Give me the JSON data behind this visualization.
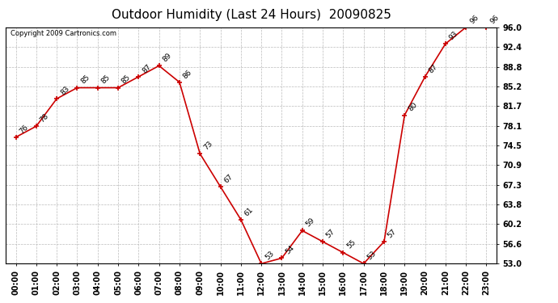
{
  "title": "Outdoor Humidity (Last 24 Hours)  20090825",
  "copyright": "Copyright 2009 Cartronics.com",
  "x_labels": [
    "00:00",
    "01:00",
    "02:00",
    "03:00",
    "04:00",
    "05:00",
    "06:00",
    "07:00",
    "08:00",
    "09:00",
    "10:00",
    "11:00",
    "12:00",
    "13:00",
    "14:00",
    "15:00",
    "16:00",
    "17:00",
    "18:00",
    "19:00",
    "20:00",
    "21:00",
    "22:00",
    "23:00"
  ],
  "y_values": [
    76,
    78,
    83,
    85,
    85,
    85,
    87,
    89,
    86,
    73,
    67,
    61,
    53,
    54,
    59,
    57,
    55,
    53,
    57,
    80,
    87,
    93,
    96,
    96
  ],
  "y_ticks": [
    53.0,
    56.6,
    60.2,
    63.8,
    67.3,
    70.9,
    74.5,
    78.1,
    81.7,
    85.2,
    88.8,
    92.4,
    96.0
  ],
  "ylim_min": 53.0,
  "ylim_max": 96.0,
  "line_color": "#cc0000",
  "bg_color": "#ffffff",
  "grid_color": "#bbbbbb",
  "title_fontsize": 11,
  "tick_fontsize": 7,
  "annot_fontsize": 6.5,
  "copyright_fontsize": 6
}
